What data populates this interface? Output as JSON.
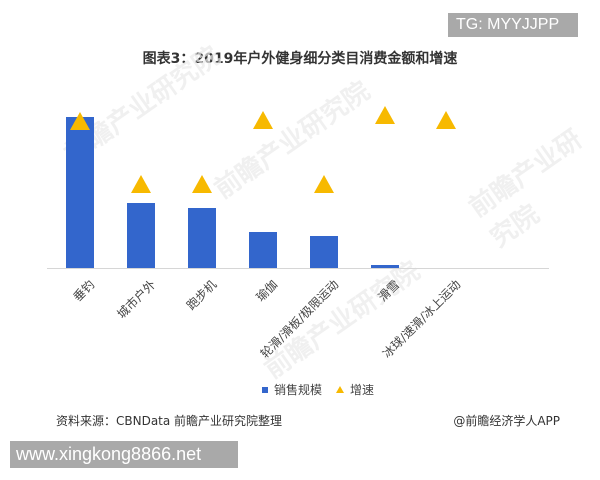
{
  "badges": {
    "tg": "TG: MYYJJPP",
    "site": "www.xingkong8866.net"
  },
  "watermark": "前瞻产业研究院",
  "colors": {
    "bar": "#3366cc",
    "triangle": "#f7b900",
    "axis": "#d6d6d6"
  },
  "legend": {
    "bar_label": "销售规模",
    "marker_label": "增速"
  },
  "footer": {
    "source": "资料来源：CBNData 前瞻产业研究院整理",
    "credit": "@前瞻经济学人APP"
  },
  "chart_data": {
    "type": "bar",
    "title": "图表3：2019年户外健身细分类目消费金额和增速",
    "xlabel": "",
    "ylabel": "",
    "grid": false,
    "legend_position": "bottom",
    "categories": [
      "垂钓",
      "城市户外",
      "跑步机",
      "瑜伽",
      "轮滑/滑板/极限运动",
      "滑雪",
      "冰球/速滑/冰上运动"
    ],
    "series": [
      {
        "name": "销售规模",
        "type": "bar",
        "values": [
          100,
          43,
          40,
          24,
          21,
          2,
          0
        ],
        "note": "relative heights, no axis values shown"
      },
      {
        "name": "增速",
        "type": "scatter",
        "marker": "triangle",
        "values": [
          96,
          56,
          56,
          97,
          56,
          100,
          97
        ],
        "note": "relative positions, no axis values shown"
      }
    ]
  }
}
